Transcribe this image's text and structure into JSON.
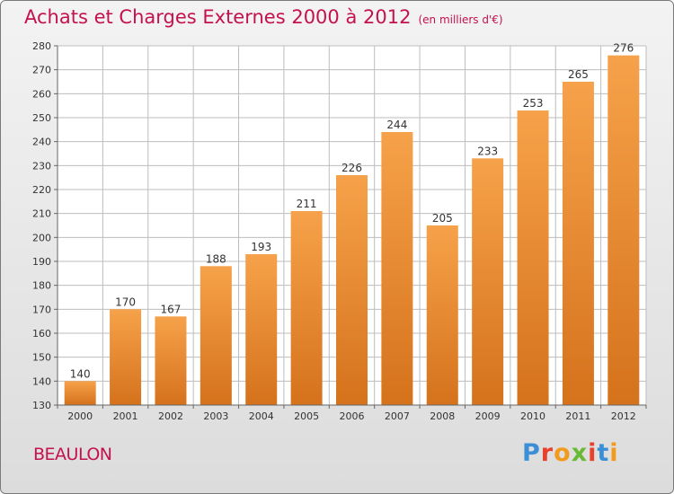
{
  "header": {
    "title": "Achats et Charges Externes 2000 à 2012",
    "subtitle": "(en milliers d'€)"
  },
  "footer": {
    "commune": "BEAULON",
    "logo_text": "Proxiti",
    "logo_colors": [
      "#3a8fd6",
      "#e8402a",
      "#f29a1c",
      "#6ab934",
      "#e8402a",
      "#3a8fd6",
      "#f29a1c"
    ]
  },
  "colors": {
    "bar_light": "#f6a24a",
    "bar_dark": "#d5721c",
    "text_accent": "#c4114f",
    "grid": "#bdbdbd"
  },
  "chart_data": {
    "type": "bar",
    "categories": [
      "2000",
      "2001",
      "2002",
      "2003",
      "2004",
      "2005",
      "2006",
      "2007",
      "2008",
      "2009",
      "2010",
      "2011",
      "2012"
    ],
    "values": [
      140,
      170,
      167,
      188,
      193,
      211,
      226,
      244,
      205,
      233,
      253,
      265,
      276
    ],
    "title": "Achats et Charges Externes 2000 à 2012",
    "xlabel": "",
    "ylabel": "",
    "ylim": [
      130,
      280
    ],
    "yticks": [
      130,
      140,
      150,
      160,
      170,
      180,
      190,
      200,
      210,
      220,
      230,
      240,
      250,
      260,
      270,
      280
    ],
    "grid": true,
    "data_labels": true
  }
}
